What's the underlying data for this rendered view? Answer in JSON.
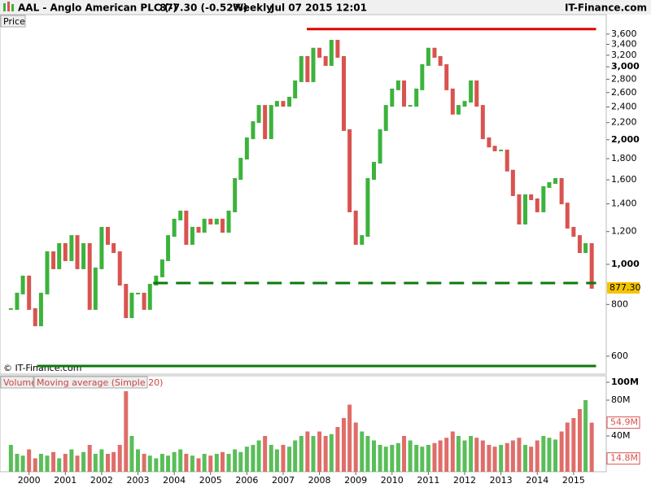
{
  "header": {
    "symbol": "AAL - Anglo American PLC (-)",
    "price": "877.30 (-0.52%)",
    "period": "Weekly",
    "datetime": "Jul 07 2015 12:01",
    "site": "IT-Finance.com"
  },
  "chart_data": [
    {
      "type": "candlestick",
      "panel_label": "Price",
      "credit": "© IT-Finance.com",
      "log_scale": true,
      "grid": false,
      "up_color": "#3cb33c",
      "down_color": "#d9534f",
      "xlim": [
        1999.2,
        2015.9
      ],
      "ylim": [
        543,
        4010
      ],
      "yticks": [
        600,
        800,
        {
          "value": 1000,
          "label": "1,000"
        },
        {
          "value": 1200,
          "label": "1,200"
        },
        {
          "value": 1400,
          "label": "1,400"
        },
        {
          "value": 1600,
          "label": "1,600"
        },
        {
          "value": 1800,
          "label": "1,800"
        },
        {
          "value": 2000,
          "label": "2,000"
        },
        {
          "value": 2200,
          "label": "2,200"
        },
        {
          "value": 2400,
          "label": "2,400"
        },
        {
          "value": 2600,
          "label": "2,600"
        },
        {
          "value": 2800,
          "label": "2,800"
        },
        {
          "value": 3000,
          "label": "3,000"
        },
        {
          "value": 3200,
          "label": "3,200"
        },
        {
          "value": 3400,
          "label": "3,400"
        },
        {
          "value": 3600,
          "label": "3,600"
        }
      ],
      "x": [
        1999.5,
        1999.67,
        1999.83,
        2000,
        2000.17,
        2000.33,
        2000.5,
        2000.67,
        2000.83,
        2001,
        2001.17,
        2001.33,
        2001.5,
        2001.67,
        2001.83,
        2002,
        2002.17,
        2002.33,
        2002.5,
        2002.67,
        2002.83,
        2003,
        2003.17,
        2003.33,
        2003.5,
        2003.67,
        2003.83,
        2004,
        2004.17,
        2004.33,
        2004.5,
        2004.67,
        2004.83,
        2005,
        2005.17,
        2005.33,
        2005.5,
        2005.67,
        2005.83,
        2006,
        2006.17,
        2006.33,
        2006.5,
        2006.67,
        2006.83,
        2007,
        2007.17,
        2007.33,
        2007.5,
        2007.67,
        2007.83,
        2008,
        2008.17,
        2008.33,
        2008.5,
        2008.67,
        2008.83,
        2009,
        2009.17,
        2009.33,
        2009.5,
        2009.67,
        2009.83,
        2010,
        2010.17,
        2010.33,
        2010.5,
        2010.67,
        2010.83,
        2011,
        2011.17,
        2011.33,
        2011.5,
        2011.67,
        2011.83,
        2012,
        2012.17,
        2012.33,
        2012.5,
        2012.67,
        2012.83,
        2013,
        2013.17,
        2013.33,
        2013.5,
        2013.67,
        2013.83,
        2014,
        2014.17,
        2014.33,
        2014.5,
        2014.67,
        2014.83,
        2015,
        2015.17,
        2015.33,
        2015.5
      ],
      "values": [
        780,
        850,
        935,
        780,
        712,
        850,
        1070,
        978,
        1120,
        1023,
        1171,
        978,
        1120,
        780,
        978,
        1226,
        1120,
        1070,
        893,
        745,
        850,
        850,
        780,
        893,
        935,
        1023,
        1171,
        1283,
        1342,
        1120,
        1226,
        1198,
        1283,
        1254,
        1283,
        1198,
        1342,
        1608,
        1800,
        2016,
        2206,
        2415,
        2016,
        2415,
        2470,
        2415,
        2528,
        2768,
        3170,
        2768,
        3320,
        3170,
        3030,
        3470,
        3170,
        2110,
        1342,
        1120,
        1171,
        1608,
        1760,
        2110,
        2415,
        2646,
        2768,
        2415,
        2415,
        2646,
        3030,
        3320,
        3170,
        3030,
        2646,
        2311,
        2415,
        2470,
        2768,
        2415,
        2016,
        1925,
        1884,
        1884,
        1684,
        1469,
        1254,
        1469,
        1436,
        1342,
        1537,
        1572,
        1608,
        1403,
        1226,
        1171,
        1070,
        1120,
        877.3
      ],
      "last_value": {
        "value": 877.3,
        "label": "877.30"
      },
      "last_color": "#f5c400",
      "lines": [
        {
          "value": 3700,
          "x": [
            2007.65,
            2015.62
          ],
          "color": "#e00000",
          "style": "solid"
        },
        {
          "value": 901,
          "x": [
            2003.42,
            2015.62
          ],
          "color": "#0a7a0a",
          "style": "dashed"
        },
        {
          "value": 568,
          "x": [
            2000.22,
            2015.62
          ],
          "color": "#0a7a0a",
          "style": "solid"
        }
      ]
    },
    {
      "type": "bar",
      "panel_label": "Volume",
      "indicator_label": "Moving average (Simple 20)",
      "xlim": [
        1999.2,
        2015.9
      ],
      "ylim": [
        0,
        100
      ],
      "yticks": [
        {
          "value": 40,
          "label": "40M"
        },
        {
          "value": 80,
          "label": "80M"
        },
        {
          "value": 100,
          "label": "100M"
        }
      ],
      "xticks": [
        2000,
        2001,
        2002,
        2003,
        2004,
        2005,
        2006,
        2007,
        2008,
        2009,
        2010,
        2011,
        2012,
        2013,
        2014,
        2015
      ],
      "values": [
        30,
        20,
        18,
        25,
        15,
        20,
        18,
        22,
        15,
        20,
        25,
        18,
        22,
        30,
        20,
        25,
        20,
        22,
        30,
        90,
        40,
        25,
        20,
        18,
        15,
        20,
        18,
        22,
        25,
        20,
        18,
        15,
        20,
        18,
        20,
        22,
        20,
        25,
        22,
        28,
        30,
        35,
        40,
        30,
        25,
        30,
        28,
        35,
        40,
        45,
        40,
        45,
        40,
        42,
        50,
        60,
        75,
        55,
        45,
        40,
        35,
        30,
        28,
        30,
        32,
        40,
        35,
        30,
        28,
        30,
        32,
        35,
        38,
        45,
        40,
        35,
        40,
        38,
        35,
        30,
        28,
        30,
        32,
        35,
        38,
        30,
        28,
        35,
        40,
        38,
        36,
        45,
        55,
        60,
        70,
        80,
        54.9
      ],
      "last_value_labels": [
        {
          "value": 54.9,
          "label": "54.9M",
          "color": "#d9534f"
        },
        {
          "value": 14.8,
          "label": "14.8M",
          "color": "#d9534f"
        }
      ]
    }
  ]
}
